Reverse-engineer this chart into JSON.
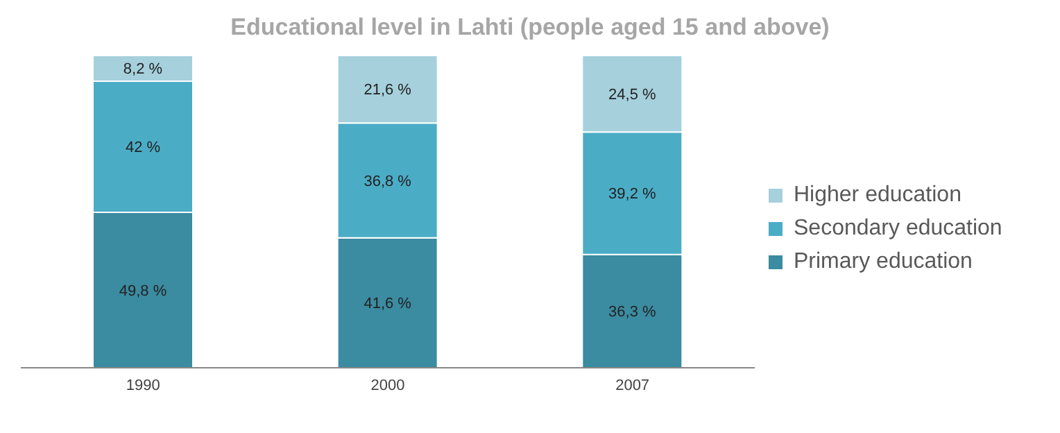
{
  "chart_data": {
    "type": "bar",
    "title": "Educational level in Lahti (people aged 15 and above)",
    "categories": [
      "1990",
      "2000",
      "2007"
    ],
    "stacked": true,
    "legend": "right",
    "grid": false,
    "series": [
      {
        "name": "Primary education",
        "color": "#3b8ba1",
        "values": [
          49.8,
          41.6,
          36.3
        ],
        "value_labels": [
          "49,8 %",
          "41,6 %",
          "36,3 %"
        ]
      },
      {
        "name": "Secondary education",
        "color": "#4bacc6",
        "values": [
          42,
          36.8,
          39.2
        ],
        "value_labels": [
          "42 %",
          "36,8 %",
          "39,2 %"
        ]
      },
      {
        "name": "Higher education",
        "color": "#a5d0dc",
        "values": [
          8.2,
          21.6,
          24.5
        ],
        "value_labels": [
          "8,2 %",
          "21,6 %",
          "24,5 %"
        ]
      }
    ]
  }
}
